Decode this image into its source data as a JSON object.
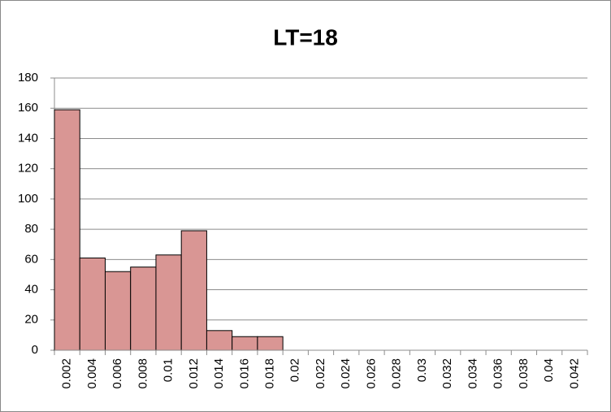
{
  "chart_data": {
    "type": "bar",
    "title": "LT=18",
    "categories": [
      "0.002",
      "0.004",
      "0.006",
      "0.008",
      "0.01",
      "0.012",
      "0.014",
      "0.016",
      "0.018",
      "0.02",
      "0.022",
      "0.024",
      "0.026",
      "0.028",
      "0.03",
      "0.032",
      "0.034",
      "0.036",
      "0.038",
      "0.04",
      "0.042"
    ],
    "values": [
      159,
      61,
      52,
      55,
      63,
      79,
      13,
      9,
      9,
      0,
      0,
      0,
      0,
      0,
      0,
      0,
      0,
      0,
      0,
      0,
      0
    ],
    "color": "#d99694",
    "ylim": [
      0,
      180
    ],
    "yticks": [
      0,
      20,
      40,
      60,
      80,
      100,
      120,
      140,
      160,
      180
    ],
    "grid": true
  }
}
